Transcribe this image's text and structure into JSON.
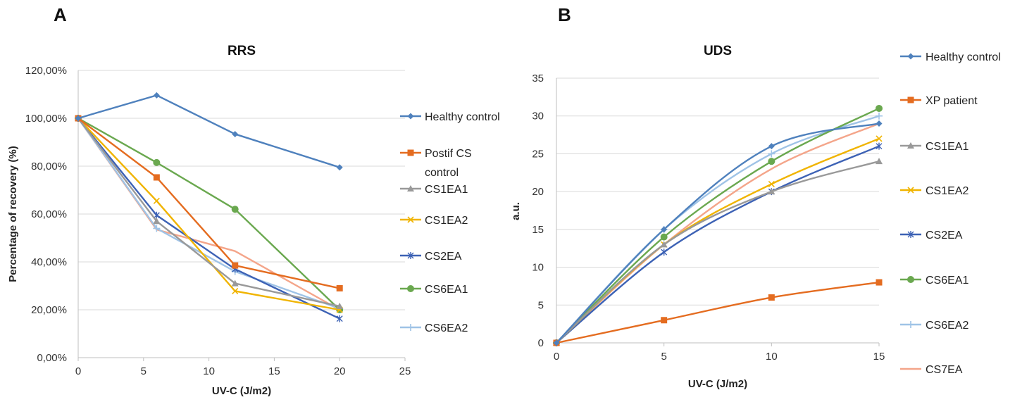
{
  "panel_labels": [
    "A",
    "B"
  ],
  "chart_data": [
    {
      "type": "line",
      "panel": "A",
      "title": "RRS",
      "xlabel": "UV-C (J/m2)",
      "ylabel": "Percentage of recovery (%)",
      "xlim": [
        0,
        25
      ],
      "ylim": [
        0,
        1.2
      ],
      "x_ticks": [
        "0",
        "5",
        "10",
        "15",
        "20",
        "25"
      ],
      "y_ticks": [
        "0,00%",
        "20,00%",
        "40,00%",
        "60,00%",
        "80,00%",
        "100,00%",
        "120,00%"
      ],
      "grid": true,
      "smooth": false,
      "legend_position": "right",
      "x": [
        0,
        6,
        12,
        20
      ],
      "series": [
        {
          "name": "Healthy control",
          "color": "#4f81bd",
          "marker": "diamond",
          "legend_lines": [
            "Healthy control"
          ],
          "values": [
            1.0,
            1.096,
            0.934,
            0.795
          ]
        },
        {
          "name": "Postif CS control",
          "color": "#e46c20",
          "marker": "square",
          "legend_lines": [
            "Postif CS",
            "control"
          ],
          "values": [
            1.0,
            0.753,
            0.385,
            0.29
          ]
        },
        {
          "name": "CS1EA1",
          "color": "#999999",
          "marker": "triangle",
          "legend_lines": [
            "CS1EA1"
          ],
          "values": [
            1.0,
            0.57,
            0.31,
            0.215
          ]
        },
        {
          "name": "CS1EA2",
          "color": "#f0b400",
          "marker": "x",
          "legend_lines": [
            "CS1EA2"
          ],
          "values": [
            1.0,
            0.655,
            0.278,
            0.2
          ]
        },
        {
          "name": "CS2EA",
          "color": "#3d62b5",
          "marker": "star",
          "legend_lines": [
            "CS2EA"
          ],
          "values": [
            1.0,
            0.595,
            0.37,
            0.163
          ]
        },
        {
          "name": "CS6EA1",
          "color": "#6aa84f",
          "marker": "circle",
          "legend_lines": [
            "CS6EA1"
          ],
          "values": [
            1.0,
            0.815,
            0.62,
            0.2
          ]
        },
        {
          "name": "CS6EA2",
          "color": "#9fc3e6",
          "marker": "plus",
          "legend_lines": [
            "CS6EA2"
          ],
          "values": [
            1.0,
            0.54,
            0.36,
            0.205
          ]
        }
      ],
      "extra_series": [
        {
          "name": "",
          "color": "#f4a58a",
          "marker": "none",
          "values": [
            1.0,
            0.535,
            0.445,
            0.2
          ]
        }
      ]
    },
    {
      "type": "line",
      "panel": "B",
      "title": "UDS",
      "xlabel": "UV-C (J/m2)",
      "ylabel": "a.u.",
      "xlim": [
        0,
        15
      ],
      "ylim": [
        0,
        35
      ],
      "x_ticks": [
        "0",
        "5",
        "10",
        "15"
      ],
      "y_ticks": [
        "0",
        "5",
        "10",
        "15",
        "20",
        "25",
        "30",
        "35"
      ],
      "grid": true,
      "smooth": true,
      "legend_position": "right",
      "x": [
        0,
        5,
        10,
        15
      ],
      "series": [
        {
          "name": "Healthy control",
          "color": "#4f81bd",
          "marker": "diamond",
          "legend_lines": [
            "Healthy control"
          ],
          "values": [
            0,
            15,
            26,
            29
          ]
        },
        {
          "name": "XP patient",
          "color": "#e46c20",
          "marker": "square",
          "legend_lines": [
            "XP patient"
          ],
          "values": [
            0,
            3,
            6,
            8
          ]
        },
        {
          "name": "CS1EA1",
          "color": "#999999",
          "marker": "triangle",
          "legend_lines": [
            "CS1EA1"
          ],
          "values": [
            0,
            13,
            20,
            24
          ]
        },
        {
          "name": "CS1EA2",
          "color": "#f0b400",
          "marker": "x",
          "legend_lines": [
            "CS1EA2"
          ],
          "values": [
            0,
            13,
            21,
            27
          ]
        },
        {
          "name": "CS2EA",
          "color": "#3d62b5",
          "marker": "star",
          "legend_lines": [
            "CS2EA"
          ],
          "values": [
            0,
            12,
            20,
            26
          ]
        },
        {
          "name": "CS6EA1",
          "color": "#6aa84f",
          "marker": "circle",
          "legend_lines": [
            "CS6EA1"
          ],
          "values": [
            0,
            14,
            24,
            31
          ]
        },
        {
          "name": "CS6EA2",
          "color": "#9fc3e6",
          "marker": "plus",
          "legend_lines": [
            "CS6EA2"
          ],
          "values": [
            0,
            15,
            25,
            30
          ]
        },
        {
          "name": "CS7EA",
          "color": "#f4a58a",
          "marker": "none",
          "legend_lines": [
            "CS7EA"
          ],
          "values": [
            0,
            13,
            23,
            29
          ]
        }
      ],
      "extra_series": []
    }
  ]
}
